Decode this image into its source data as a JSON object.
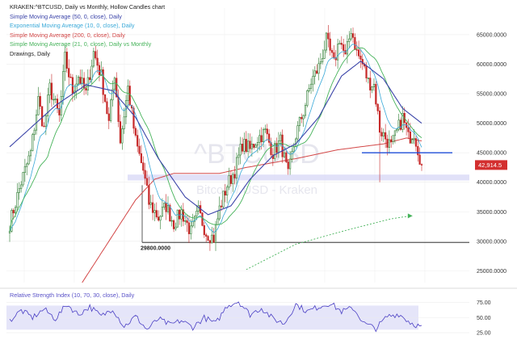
{
  "header": {
    "title": "KRAKEN:^BTCUSD, Daily vs Monthly, Hollow Candles chart",
    "legend": [
      {
        "label": "Simple Moving Average (50, 0, close), Daily",
        "color": "#3a43a8"
      },
      {
        "label": "Exponential Moving Average (10, 0, close), Daily",
        "color": "#38a8d8"
      },
      {
        "label": "Simple Moving Average (200, 0, close), Daily",
        "color": "#d34848"
      },
      {
        "label": "Simple Moving Average (21, 0, close), Daily vs Monthly",
        "color": "#46b35a"
      },
      {
        "label": "Drawings, Daily",
        "color": "#222222"
      }
    ]
  },
  "watermark": {
    "symbol": "^BTCUSD",
    "subtitle": "Bitcoin / USD - Kraken"
  },
  "chart_data": [
    {
      "type": "candlestick",
      "title": "KRAKEN:^BTCUSD, Daily vs Monthly, Hollow Candles chart",
      "y_ticks": [
        25000,
        30000,
        35000,
        40000,
        45000,
        50000,
        55000,
        60000,
        65000
      ],
      "y_tick_labels": [
        "25000.0000",
        "30000.0000",
        "35000.0000",
        "40000.0000",
        "45000.0000",
        "50000.0000",
        "55000.0000",
        "60000.0000",
        "65000.0000"
      ],
      "ylim": [
        23000,
        69500
      ],
      "last_price": 42914.5,
      "last_price_label": "42,914.5",
      "price_anchors": [
        [
          0,
          33000
        ],
        [
          6,
          40000
        ],
        [
          11,
          45000
        ],
        [
          15,
          54000
        ],
        [
          18,
          49000
        ],
        [
          21,
          56000
        ],
        [
          26,
          51000
        ],
        [
          29,
          61000
        ],
        [
          33,
          55500
        ],
        [
          36,
          58000
        ],
        [
          40,
          55000
        ],
        [
          44,
          62000
        ],
        [
          48,
          58000
        ],
        [
          52,
          50000
        ],
        [
          55,
          58500
        ],
        [
          58,
          47000
        ],
        [
          62,
          56000
        ],
        [
          66,
          47000
        ],
        [
          70,
          42000
        ],
        [
          73,
          36500
        ],
        [
          78,
          34000
        ],
        [
          82,
          36000
        ],
        [
          86,
          33000
        ],
        [
          90,
          35000
        ],
        [
          95,
          31500
        ],
        [
          99,
          35000
        ],
        [
          103,
          31500
        ],
        [
          107,
          30500
        ],
        [
          110,
          35500
        ],
        [
          114,
          39500
        ],
        [
          118,
          42000
        ],
        [
          122,
          46500
        ],
        [
          126,
          45500
        ],
        [
          130,
          47500
        ],
        [
          134,
          48500
        ],
        [
          138,
          45000
        ],
        [
          142,
          47000
        ],
        [
          146,
          41000
        ],
        [
          150,
          48000
        ],
        [
          154,
          52000
        ],
        [
          158,
          57000
        ],
        [
          162,
          59500
        ],
        [
          166,
          64000
        ],
        [
          170,
          60000
        ],
        [
          173,
          64500
        ],
        [
          176,
          61000
        ],
        [
          179,
          66000
        ],
        [
          182,
          62000
        ],
        [
          185,
          60000
        ],
        [
          188,
          57000
        ],
        [
          191,
          56500
        ],
        [
          194,
          49000
        ],
        [
          197,
          47500
        ],
        [
          200,
          46000
        ],
        [
          203,
          48500
        ],
        [
          206,
          51000
        ],
        [
          209,
          47500
        ],
        [
          212,
          48500
        ],
        [
          216,
          42900
        ]
      ],
      "sma50_anchors": [
        [
          0,
          46000
        ],
        [
          24,
          53000
        ],
        [
          40,
          56500
        ],
        [
          54,
          55500
        ],
        [
          66,
          51000
        ],
        [
          78,
          44000
        ],
        [
          92,
          37500
        ],
        [
          104,
          34500
        ],
        [
          116,
          36000
        ],
        [
          126,
          40500
        ],
        [
          138,
          44500
        ],
        [
          150,
          46500
        ],
        [
          162,
          51000
        ],
        [
          174,
          58000
        ],
        [
          184,
          60500
        ],
        [
          196,
          57500
        ],
        [
          206,
          52500
        ],
        [
          216,
          50000
        ]
      ],
      "sma200_anchors": [
        [
          38,
          23000
        ],
        [
          52,
          30000
        ],
        [
          66,
          37000
        ],
        [
          76,
          40500
        ],
        [
          86,
          41500
        ],
        [
          110,
          41500
        ],
        [
          124,
          42500
        ],
        [
          150,
          44000
        ],
        [
          172,
          45500
        ],
        [
          196,
          46500
        ],
        [
          208,
          47500
        ],
        [
          216,
          47000
        ]
      ],
      "sma21_projection_anchors": [
        [
          124,
          25200
        ],
        [
          150,
          29500
        ],
        [
          178,
          32000
        ],
        [
          200,
          33800
        ],
        [
          210,
          34300
        ]
      ],
      "drawings": {
        "support_line": 45000,
        "lower_box": [
          40300,
          41300
        ],
        "low_line": 29800,
        "low_label": "29800.0000"
      }
    },
    {
      "type": "line",
      "title": "Relative Strength Index (10, 70, 30, close), Daily",
      "y_ticks": [
        25,
        50,
        75
      ],
      "y_tick_labels": [
        "25.00",
        "50.00",
        "75.00"
      ],
      "ylim": [
        17,
        88
      ],
      "band": [
        30,
        70
      ],
      "rsi_anchors": [
        [
          0,
          45
        ],
        [
          6,
          62
        ],
        [
          12,
          50
        ],
        [
          18,
          64
        ],
        [
          24,
          48
        ],
        [
          30,
          72
        ],
        [
          36,
          55
        ],
        [
          42,
          68
        ],
        [
          48,
          52
        ],
        [
          54,
          65
        ],
        [
          60,
          35
        ],
        [
          66,
          52
        ],
        [
          72,
          30
        ],
        [
          78,
          48
        ],
        [
          84,
          38
        ],
        [
          90,
          45
        ],
        [
          96,
          34
        ],
        [
          102,
          50
        ],
        [
          108,
          40
        ],
        [
          114,
          70
        ],
        [
          120,
          77
        ],
        [
          126,
          55
        ],
        [
          132,
          66
        ],
        [
          138,
          48
        ],
        [
          144,
          40
        ],
        [
          150,
          72
        ],
        [
          156,
          60
        ],
        [
          162,
          68
        ],
        [
          168,
          74
        ],
        [
          174,
          60
        ],
        [
          180,
          66
        ],
        [
          186,
          40
        ],
        [
          192,
          32
        ],
        [
          198,
          52
        ],
        [
          204,
          56
        ],
        [
          210,
          42
        ],
        [
          216,
          34
        ]
      ]
    }
  ]
}
